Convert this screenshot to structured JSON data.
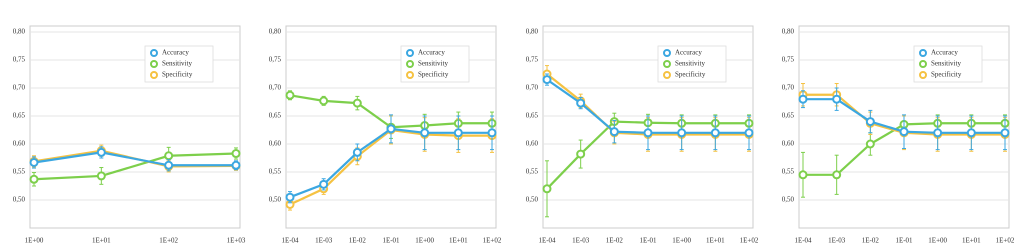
{
  "chart_data": [
    {
      "type": "line",
      "legend": "upper right",
      "grid": true,
      "categories": [
        "1E+00",
        "1E+01",
        "1E+02",
        "1E+03"
      ],
      "ylim": [
        0.45,
        0.8
      ],
      "yticks": [
        {
          "value": 0.5,
          "label": "0,50"
        },
        {
          "value": 0.55,
          "label": "0,55"
        },
        {
          "value": 0.6,
          "label": "0,60"
        },
        {
          "value": 0.65,
          "label": "0,65"
        },
        {
          "value": 0.7,
          "label": "0,70"
        },
        {
          "value": 0.75,
          "label": "0,75"
        },
        {
          "value": 0.8,
          "label": "0,80"
        }
      ],
      "series": [
        {
          "name": "Accuracy",
          "color": "#3ba7e1",
          "values": [
            0.567,
            0.585,
            0.562,
            0.562
          ],
          "errors": [
            0.01,
            0.01,
            0.01,
            0.008
          ]
        },
        {
          "name": "Sensitivity",
          "color": "#7dcf4b",
          "values": [
            0.537,
            0.543,
            0.579,
            0.583
          ],
          "errors": [
            0.012,
            0.015,
            0.015,
            0.01
          ]
        },
        {
          "name": "Specificity",
          "color": "#f5c242",
          "values": [
            0.569,
            0.588,
            0.56,
            0.561
          ],
          "errors": [
            0.01,
            0.01,
            0.01,
            0.008
          ]
        }
      ]
    },
    {
      "type": "line",
      "legend": "upper right",
      "grid": true,
      "categories": [
        "1E-04",
        "1E-03",
        "1E-02",
        "1E-01",
        "1E+00",
        "1E+01",
        "1E+02"
      ],
      "ylim": [
        0.45,
        0.8
      ],
      "yticks": [
        {
          "value": 0.5,
          "label": "0,50"
        },
        {
          "value": 0.55,
          "label": "0,55"
        },
        {
          "value": 0.6,
          "label": "0,60"
        },
        {
          "value": 0.65,
          "label": "0,65"
        },
        {
          "value": 0.7,
          "label": "0,70"
        },
        {
          "value": 0.75,
          "label": "0,75"
        },
        {
          "value": 0.8,
          "label": "0,80"
        }
      ],
      "series": [
        {
          "name": "Accuracy",
          "color": "#3ba7e1",
          "values": [
            0.505,
            0.528,
            0.585,
            0.627,
            0.62,
            0.62,
            0.62
          ],
          "errors": [
            0.01,
            0.01,
            0.015,
            0.025,
            0.03,
            0.03,
            0.03
          ]
        },
        {
          "name": "Sensitivity",
          "color": "#7dcf4b",
          "values": [
            0.687,
            0.677,
            0.673,
            0.63,
            0.633,
            0.637,
            0.637
          ],
          "errors": [
            0.008,
            0.008,
            0.012,
            0.02,
            0.02,
            0.02,
            0.02
          ]
        },
        {
          "name": "Specificity",
          "color": "#f5c242",
          "values": [
            0.492,
            0.52,
            0.578,
            0.625,
            0.617,
            0.615,
            0.615
          ],
          "errors": [
            0.01,
            0.01,
            0.015,
            0.025,
            0.03,
            0.03,
            0.03
          ]
        }
      ]
    },
    {
      "type": "line",
      "legend": "upper right",
      "grid": true,
      "categories": [
        "1E-04",
        "1E-03",
        "1E-02",
        "1E-01",
        "1E+00",
        "1E+01",
        "1E+02"
      ],
      "ylim": [
        0.45,
        0.8
      ],
      "yticks": [
        {
          "value": 0.5,
          "label": "0,50"
        },
        {
          "value": 0.55,
          "label": "0,55"
        },
        {
          "value": 0.6,
          "label": "0,60"
        },
        {
          "value": 0.65,
          "label": "0,65"
        },
        {
          "value": 0.7,
          "label": "0,70"
        },
        {
          "value": 0.75,
          "label": "0,75"
        },
        {
          "value": 0.8,
          "label": "0,80"
        }
      ],
      "series": [
        {
          "name": "Accuracy",
          "color": "#3ba7e1",
          "values": [
            0.715,
            0.673,
            0.622,
            0.62,
            0.62,
            0.62,
            0.62
          ],
          "errors": [
            0.01,
            0.01,
            0.02,
            0.03,
            0.03,
            0.03,
            0.03
          ]
        },
        {
          "name": "Sensitivity",
          "color": "#7dcf4b",
          "values": [
            0.52,
            0.582,
            0.64,
            0.638,
            0.637,
            0.637,
            0.637
          ],
          "errors": [
            0.05,
            0.025,
            0.015,
            0.015,
            0.015,
            0.015,
            0.015
          ]
        },
        {
          "name": "Specificity",
          "color": "#f5c242",
          "values": [
            0.725,
            0.677,
            0.62,
            0.617,
            0.617,
            0.617,
            0.617
          ],
          "errors": [
            0.015,
            0.012,
            0.02,
            0.03,
            0.03,
            0.03,
            0.03
          ]
        }
      ]
    },
    {
      "type": "line",
      "legend": "upper right",
      "grid": true,
      "categories": [
        "1E-04",
        "1E-03",
        "1E-02",
        "1E-01",
        "1E+00",
        "1E+01",
        "1E+02"
      ],
      "ylim": [
        0.45,
        0.8
      ],
      "yticks": [
        {
          "value": 0.5,
          "label": "0,50"
        },
        {
          "value": 0.55,
          "label": "0,55"
        },
        {
          "value": 0.6,
          "label": "0,60"
        },
        {
          "value": 0.65,
          "label": "0,65"
        },
        {
          "value": 0.7,
          "label": "0,70"
        },
        {
          "value": 0.75,
          "label": "0,75"
        },
        {
          "value": 0.8,
          "label": "0,80"
        }
      ],
      "series": [
        {
          "name": "Accuracy",
          "color": "#3ba7e1",
          "values": [
            0.68,
            0.68,
            0.64,
            0.622,
            0.62,
            0.62,
            0.62
          ],
          "errors": [
            0.015,
            0.02,
            0.02,
            0.03,
            0.03,
            0.03,
            0.03
          ]
        },
        {
          "name": "Sensitivity",
          "color": "#7dcf4b",
          "values": [
            0.545,
            0.545,
            0.6,
            0.635,
            0.637,
            0.637,
            0.637
          ],
          "errors": [
            0.04,
            0.035,
            0.02,
            0.015,
            0.015,
            0.015,
            0.015
          ]
        },
        {
          "name": "Specificity",
          "color": "#f5c242",
          "values": [
            0.688,
            0.688,
            0.637,
            0.62,
            0.617,
            0.617,
            0.617
          ],
          "errors": [
            0.02,
            0.02,
            0.02,
            0.03,
            0.03,
            0.03,
            0.03
          ]
        }
      ]
    }
  ]
}
